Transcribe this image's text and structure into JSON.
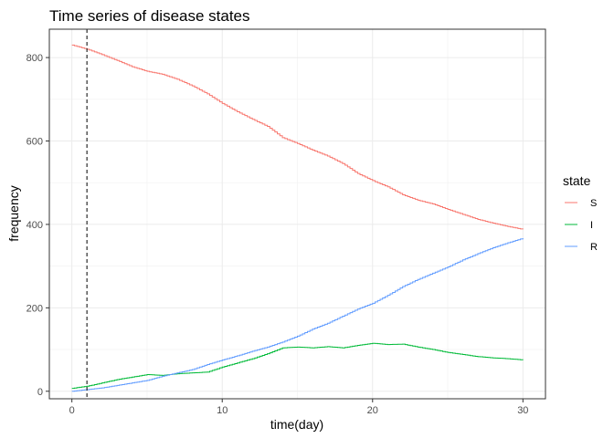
{
  "chart_data": {
    "type": "line",
    "title": "Time series of disease states",
    "xlabel": "time(day)",
    "ylabel": "frequency",
    "xlim": [
      -1.5,
      31.5
    ],
    "ylim": [
      -18,
      868
    ],
    "x_ticks": [
      0,
      10,
      20,
      30
    ],
    "y_ticks": [
      0,
      200,
      400,
      600,
      800
    ],
    "grid": true,
    "vline": {
      "x": 1,
      "style": "dashed",
      "color": "#000000"
    },
    "legend": {
      "title": "state",
      "position": "right"
    },
    "x": [
      0,
      1,
      2,
      3,
      4,
      5,
      6,
      7,
      8,
      9,
      10,
      11,
      12,
      13,
      14,
      15,
      16,
      17,
      18,
      19,
      20,
      21,
      22,
      23,
      24,
      25,
      26,
      27,
      28,
      29,
      30
    ],
    "series": [
      {
        "name": "S",
        "color": "#F8766D",
        "values": [
          830,
          820,
          807,
          793,
          778,
          767,
          760,
          748,
          732,
          713,
          690,
          670,
          652,
          635,
          608,
          594,
          578,
          564,
          546,
          522,
          505,
          490,
          471,
          458,
          449,
          436,
          424,
          412,
          403,
          395,
          388
        ]
      },
      {
        "name": "I",
        "color": "#00BA38",
        "values": [
          7,
          12,
          20,
          28,
          34,
          40,
          38,
          42,
          44,
          46,
          58,
          68,
          78,
          90,
          104,
          106,
          104,
          107,
          104,
          110,
          115,
          112,
          113,
          106,
          100,
          93,
          88,
          83,
          80,
          78,
          75
        ]
      },
      {
        "name": "R",
        "color": "#619CFF",
        "values": [
          0,
          4,
          8,
          14,
          20,
          26,
          36,
          44,
          52,
          64,
          75,
          85,
          96,
          106,
          118,
          132,
          149,
          163,
          180,
          197,
          211,
          230,
          251,
          268,
          283,
          298,
          315,
          330,
          344,
          356,
          367
        ]
      }
    ]
  }
}
